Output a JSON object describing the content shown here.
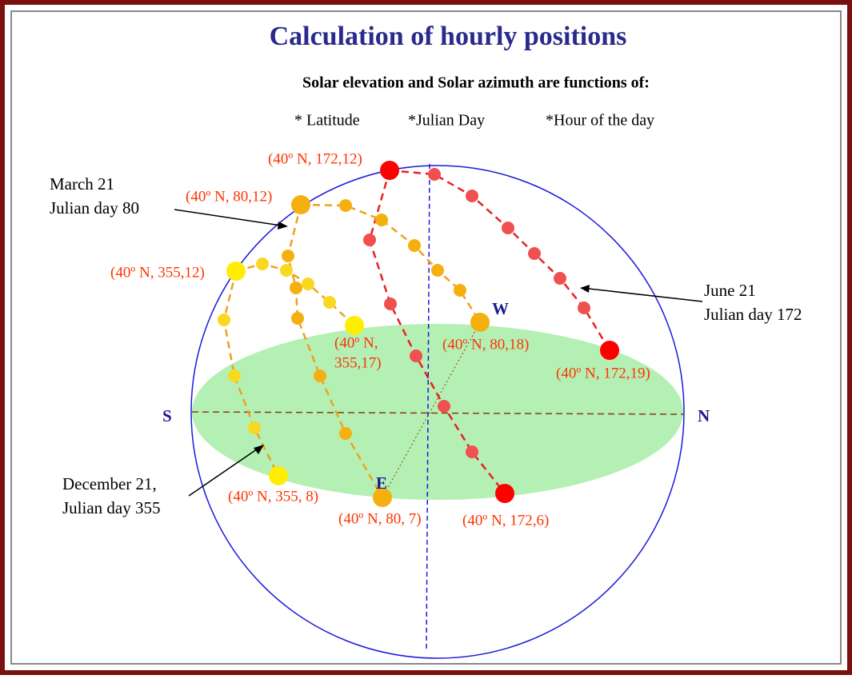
{
  "title": "Calculation of hourly positions",
  "subtitle": "Solar elevation and Solar azimuth are functions of:",
  "factors": [
    "* Latitude",
    "*Julian Day",
    "*Hour of the day"
  ],
  "compass": {
    "south": "S",
    "north": "N",
    "west": "W",
    "east": "E"
  },
  "points": [
    "(40º N, 172,12)",
    "(40º N, 80,12)",
    "(40º N, 355,12)",
    "(40º N,",
    "355,17)",
    "(40º N, 80,18)",
    "(40º N, 172,19)",
    "(40º N, 355, 8)",
    "(40º N, 80, 7)",
    "(40º N, 172,6)"
  ],
  "annotations": {
    "march": [
      "March 21",
      "Julian day 80"
    ],
    "june": [
      "June 21",
      "Julian day 172"
    ],
    "december": [
      "December 21,",
      "Julian day 355"
    ]
  }
}
